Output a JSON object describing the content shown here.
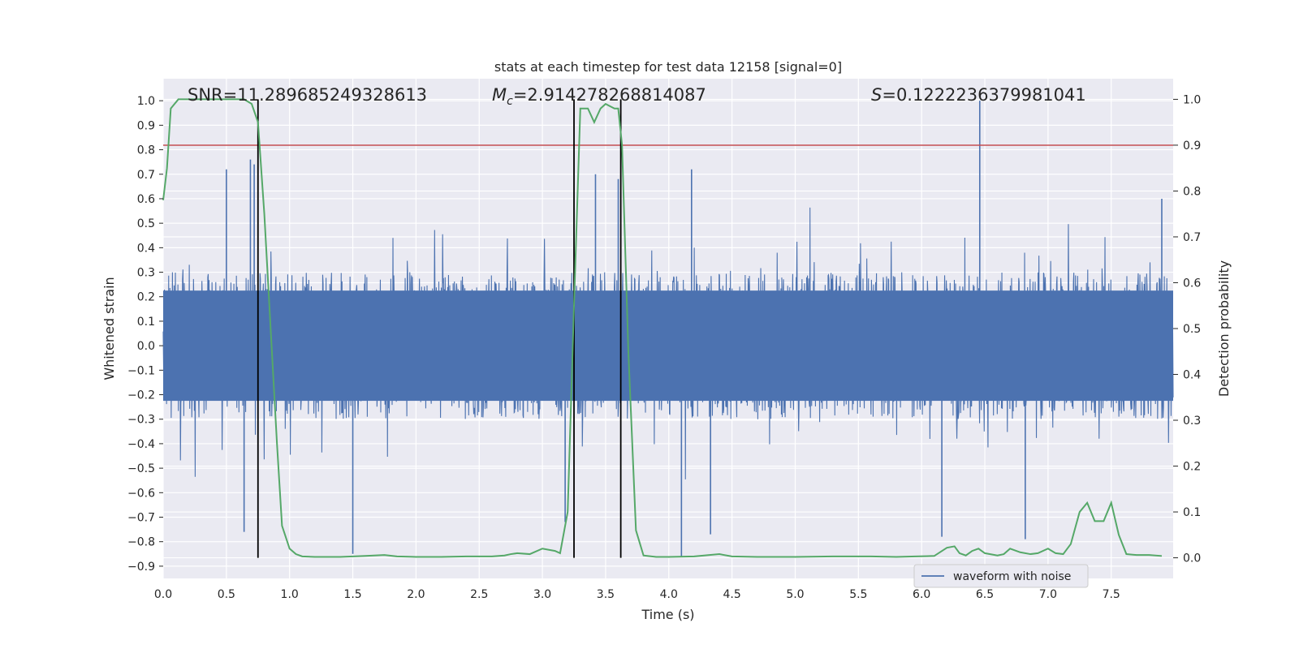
{
  "chart_data": {
    "type": "line",
    "title": "stats at each timestep for test data 12158 [signal=0]",
    "xlabel": "Time (s)",
    "ylabel_left": "Whitened strain",
    "ylabel_right": "Detection probability",
    "xlim": [
      0.0,
      7.99
    ],
    "ylim_left": [
      -0.95,
      1.09
    ],
    "ylim_right": [
      -0.045,
      1.045
    ],
    "x_ticks": [
      0.0,
      0.5,
      1.0,
      1.5,
      2.0,
      2.5,
      3.0,
      3.5,
      4.0,
      4.5,
      5.0,
      5.5,
      6.0,
      6.5,
      7.0,
      7.5
    ],
    "x_tick_labels": [
      "0.0",
      "0.5",
      "1.0",
      "1.5",
      "2.0",
      "2.5",
      "3.0",
      "3.5",
      "4.0",
      "4.5",
      "5.0",
      "5.5",
      "6.0",
      "6.5",
      "7.0",
      "7.5"
    ],
    "y_left_ticks": [
      1.0,
      0.9,
      0.8,
      0.7,
      0.6,
      0.5,
      0.4,
      0.3,
      0.2,
      0.1,
      0.0,
      -0.1,
      -0.2,
      -0.3,
      -0.4,
      -0.5,
      -0.6,
      -0.7,
      -0.8,
      -0.9
    ],
    "y_left_tick_labels": [
      "1.0",
      "0.9",
      "0.8",
      "0.7",
      "0.6",
      "0.5",
      "0.4",
      "0.3",
      "0.2",
      "0.1",
      "0.0",
      "−0.1",
      "−0.2",
      "−0.3",
      "−0.4",
      "−0.5",
      "−0.6",
      "−0.7",
      "−0.8",
      "−0.9"
    ],
    "y_right_ticks": [
      1.0,
      0.9,
      0.8,
      0.7,
      0.6,
      0.5,
      0.4,
      0.3,
      0.2,
      0.1,
      0.0
    ],
    "y_right_tick_labels": [
      "1.0",
      "0.9",
      "0.8",
      "0.7",
      "0.6",
      "0.5",
      "0.4",
      "0.3",
      "0.2",
      "0.1",
      "0.0"
    ],
    "grid": true,
    "annotations": [
      {
        "label": "SNR=11.289685249328613",
        "x": 0.2,
        "y": 1.02
      },
      {
        "prefix": "M",
        "subscript": "c",
        "rest": "=2.914278268814087",
        "x": 2.6,
        "y": 1.02
      },
      {
        "prefix": "S",
        "rest": "=0.1222236379981041",
        "x": 5.6,
        "y": 1.02
      }
    ],
    "threshold_line": {
      "y_right": 0.9,
      "color": "#c44e52"
    },
    "vertical_lines": [
      0.75,
      3.25,
      3.62
    ],
    "waveform": {
      "name": "waveform with noise",
      "color": "#4c72b0",
      "noise_band": [
        -0.3,
        0.3
      ],
      "positive_peaks": [
        {
          "x": 0.5,
          "y": 0.72
        },
        {
          "x": 0.69,
          "y": 0.76
        },
        {
          "x": 0.72,
          "y": 0.74
        },
        {
          "x": 3.42,
          "y": 0.7
        },
        {
          "x": 3.6,
          "y": 0.68
        },
        {
          "x": 4.18,
          "y": 0.72
        },
        {
          "x": 6.46,
          "y": 1.0
        },
        {
          "x": 7.9,
          "y": 0.6
        }
      ],
      "negative_peaks": [
        {
          "x": 0.64,
          "y": -0.76
        },
        {
          "x": 1.5,
          "y": -0.85
        },
        {
          "x": 3.18,
          "y": -0.72
        },
        {
          "x": 4.1,
          "y": -0.86
        },
        {
          "x": 4.33,
          "y": -0.77
        },
        {
          "x": 6.82,
          "y": -0.79
        },
        {
          "x": 6.16,
          "y": -0.78
        }
      ]
    },
    "probability_series": {
      "color": "#55a868",
      "x": [
        0.0,
        0.03,
        0.06,
        0.12,
        0.2,
        0.3,
        0.4,
        0.5,
        0.58,
        0.64,
        0.7,
        0.75,
        0.8,
        0.85,
        0.9,
        0.94,
        1.0,
        1.05,
        1.1,
        1.2,
        1.3,
        1.4,
        1.5,
        1.6,
        1.75,
        1.85,
        2.0,
        2.2,
        2.4,
        2.6,
        2.7,
        2.75,
        2.8,
        2.9,
        3.0,
        3.1,
        3.14,
        3.2,
        3.25,
        3.3,
        3.36,
        3.41,
        3.46,
        3.5,
        3.57,
        3.6,
        3.63,
        3.68,
        3.74,
        3.8,
        3.9,
        4.0,
        4.2,
        4.4,
        4.5,
        4.7,
        5.0,
        5.3,
        5.6,
        5.8,
        5.95,
        6.1,
        6.2,
        6.26,
        6.3,
        6.35,
        6.4,
        6.45,
        6.5,
        6.6,
        6.65,
        6.7,
        6.78,
        6.86,
        6.92,
        7.0,
        7.06,
        7.12,
        7.18,
        7.25,
        7.31,
        7.37,
        7.44,
        7.5,
        7.56,
        7.62,
        7.7,
        7.8,
        7.9
      ],
      "y": [
        0.78,
        0.85,
        0.98,
        1.0,
        1.0,
        1.0,
        1.0,
        1.0,
        1.0,
        1.0,
        0.99,
        0.95,
        0.75,
        0.5,
        0.25,
        0.07,
        0.02,
        0.008,
        0.003,
        0.002,
        0.002,
        0.002,
        0.003,
        0.004,
        0.006,
        0.003,
        0.002,
        0.002,
        0.003,
        0.003,
        0.005,
        0.008,
        0.01,
        0.008,
        0.02,
        0.015,
        0.01,
        0.1,
        0.55,
        0.98,
        0.98,
        0.95,
        0.98,
        0.99,
        0.98,
        0.98,
        0.9,
        0.45,
        0.06,
        0.005,
        0.002,
        0.002,
        0.003,
        0.008,
        0.003,
        0.002,
        0.002,
        0.003,
        0.003,
        0.002,
        0.003,
        0.004,
        0.022,
        0.025,
        0.01,
        0.005,
        0.015,
        0.02,
        0.01,
        0.005,
        0.008,
        0.02,
        0.012,
        0.008,
        0.01,
        0.02,
        0.01,
        0.008,
        0.03,
        0.1,
        0.12,
        0.08,
        0.08,
        0.12,
        0.05,
        0.008,
        0.006,
        0.006,
        0.004
      ]
    },
    "legend": {
      "placement": "lower-right",
      "entries": [
        "waveform with noise"
      ]
    }
  }
}
